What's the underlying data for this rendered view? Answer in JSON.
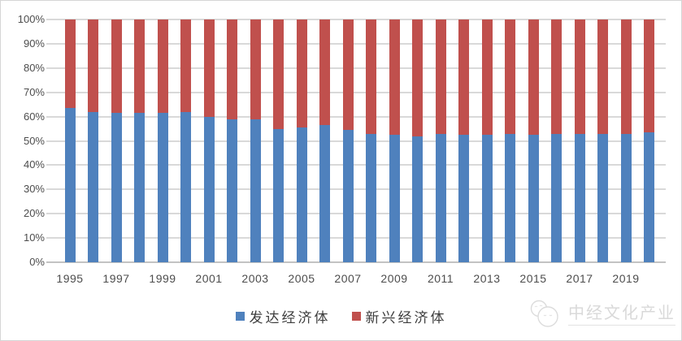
{
  "chart_data": {
    "type": "bar",
    "stacked": true,
    "percent_stacked": true,
    "grid": true,
    "legend_position": "bottom",
    "ylim": [
      0,
      100
    ],
    "ytick_labels": [
      "0%",
      "10%",
      "20%",
      "30%",
      "40%",
      "50%",
      "60%",
      "70%",
      "80%",
      "90%",
      "100%"
    ],
    "ytick_values": [
      0,
      10,
      20,
      30,
      40,
      50,
      60,
      70,
      80,
      90,
      100
    ],
    "categories": [
      1995,
      1996,
      1997,
      1998,
      1999,
      2000,
      2001,
      2002,
      2003,
      2004,
      2005,
      2006,
      2007,
      2008,
      2009,
      2010,
      2011,
      2012,
      2013,
      2014,
      2015,
      2016,
      2017,
      2018,
      2019,
      2020
    ],
    "xtick_labels": [
      "1995",
      "1997",
      "1999",
      "2001",
      "2003",
      "2005",
      "2007",
      "2009",
      "2011",
      "2013",
      "2015",
      "2017",
      "2019"
    ],
    "series": [
      {
        "name": "发达经济体",
        "color": "#4F81BD",
        "values": [
          63.5,
          62,
          61.5,
          61.5,
          61.5,
          62,
          60,
          59,
          59,
          55,
          55.5,
          56.5,
          54.5,
          53,
          52.5,
          52,
          53,
          52.5,
          52.5,
          53,
          52.5,
          53,
          53,
          53,
          53,
          53.5
        ]
      },
      {
        "name": "新兴经济体",
        "color": "#C0504D",
        "values": [
          36.5,
          38,
          38.5,
          38.5,
          38.5,
          38,
          40,
          41,
          41,
          45,
          44.5,
          43.5,
          45.5,
          47,
          47.5,
          48,
          47,
          47.5,
          47.5,
          47,
          47.5,
          47,
          47,
          47,
          47,
          46.5
        ]
      }
    ]
  },
  "legend": {
    "items": [
      {
        "label": "发达经济体",
        "color": "#4F81BD"
      },
      {
        "label": "新兴经济体",
        "color": "#C0504D"
      }
    ]
  },
  "watermark": {
    "text": "中经文化产业"
  },
  "colors": {
    "gridline": "#d9d9d9",
    "axis_line": "#c3c3c3",
    "tick_text": "#4d4d4d"
  }
}
